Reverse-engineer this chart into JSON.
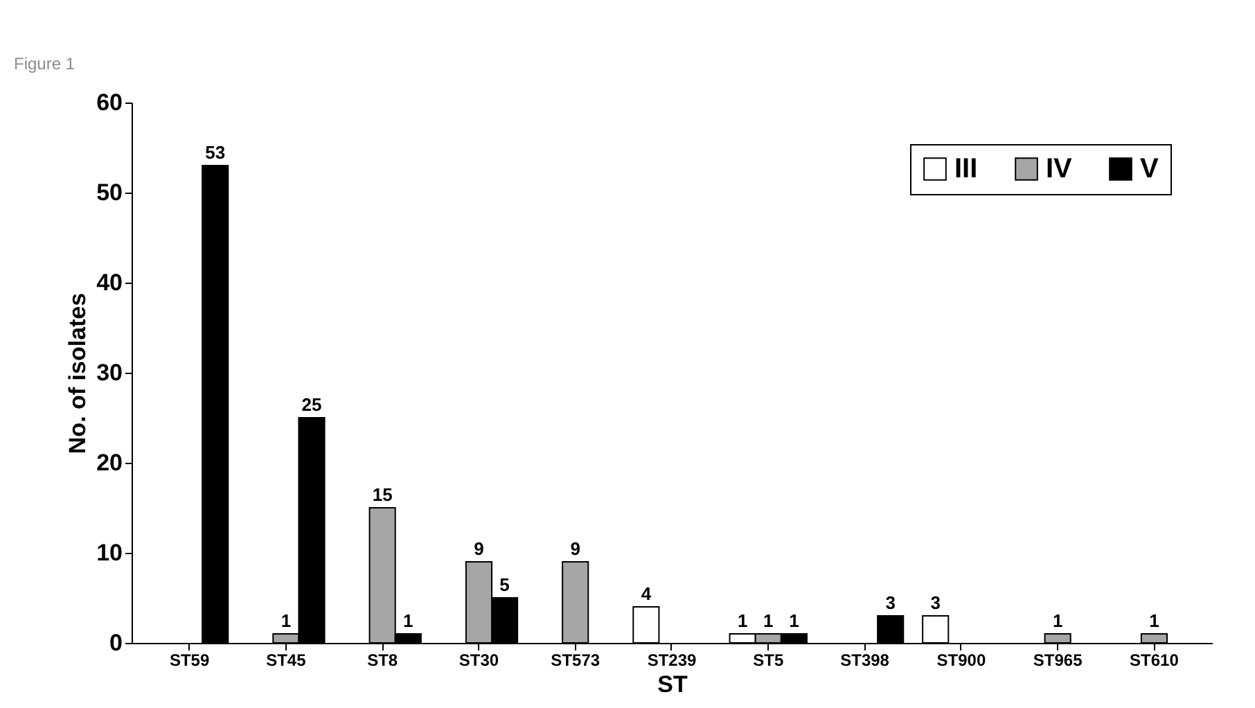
{
  "chart_data": {
    "type": "bar",
    "xlabel": "ST",
    "ylabel": "No. of isolates",
    "annotations": [
      "Figure 1"
    ],
    "categories": [
      "ST59",
      "ST45",
      "ST8",
      "ST30",
      "ST573",
      "ST239",
      "ST5",
      "ST398",
      "ST900",
      "ST965",
      "ST610"
    ],
    "series": [
      {
        "name": "III",
        "color": "#ffffff",
        "values": [
          null,
          null,
          null,
          null,
          null,
          4,
          1,
          null,
          3,
          null,
          null
        ]
      },
      {
        "name": "IV",
        "color": "#a6a6a6",
        "values": [
          null,
          1,
          15,
          9,
          9,
          null,
          1,
          null,
          null,
          1,
          1
        ]
      },
      {
        "name": "V",
        "color": "#000000",
        "values": [
          53,
          25,
          1,
          5,
          null,
          null,
          1,
          3,
          null,
          null,
          null
        ]
      }
    ],
    "ylim": [
      0,
      60
    ],
    "yticks": [
      0,
      10,
      20,
      30,
      40,
      50,
      60
    ],
    "data_labels": true,
    "grid": false,
    "legend": "top right"
  }
}
